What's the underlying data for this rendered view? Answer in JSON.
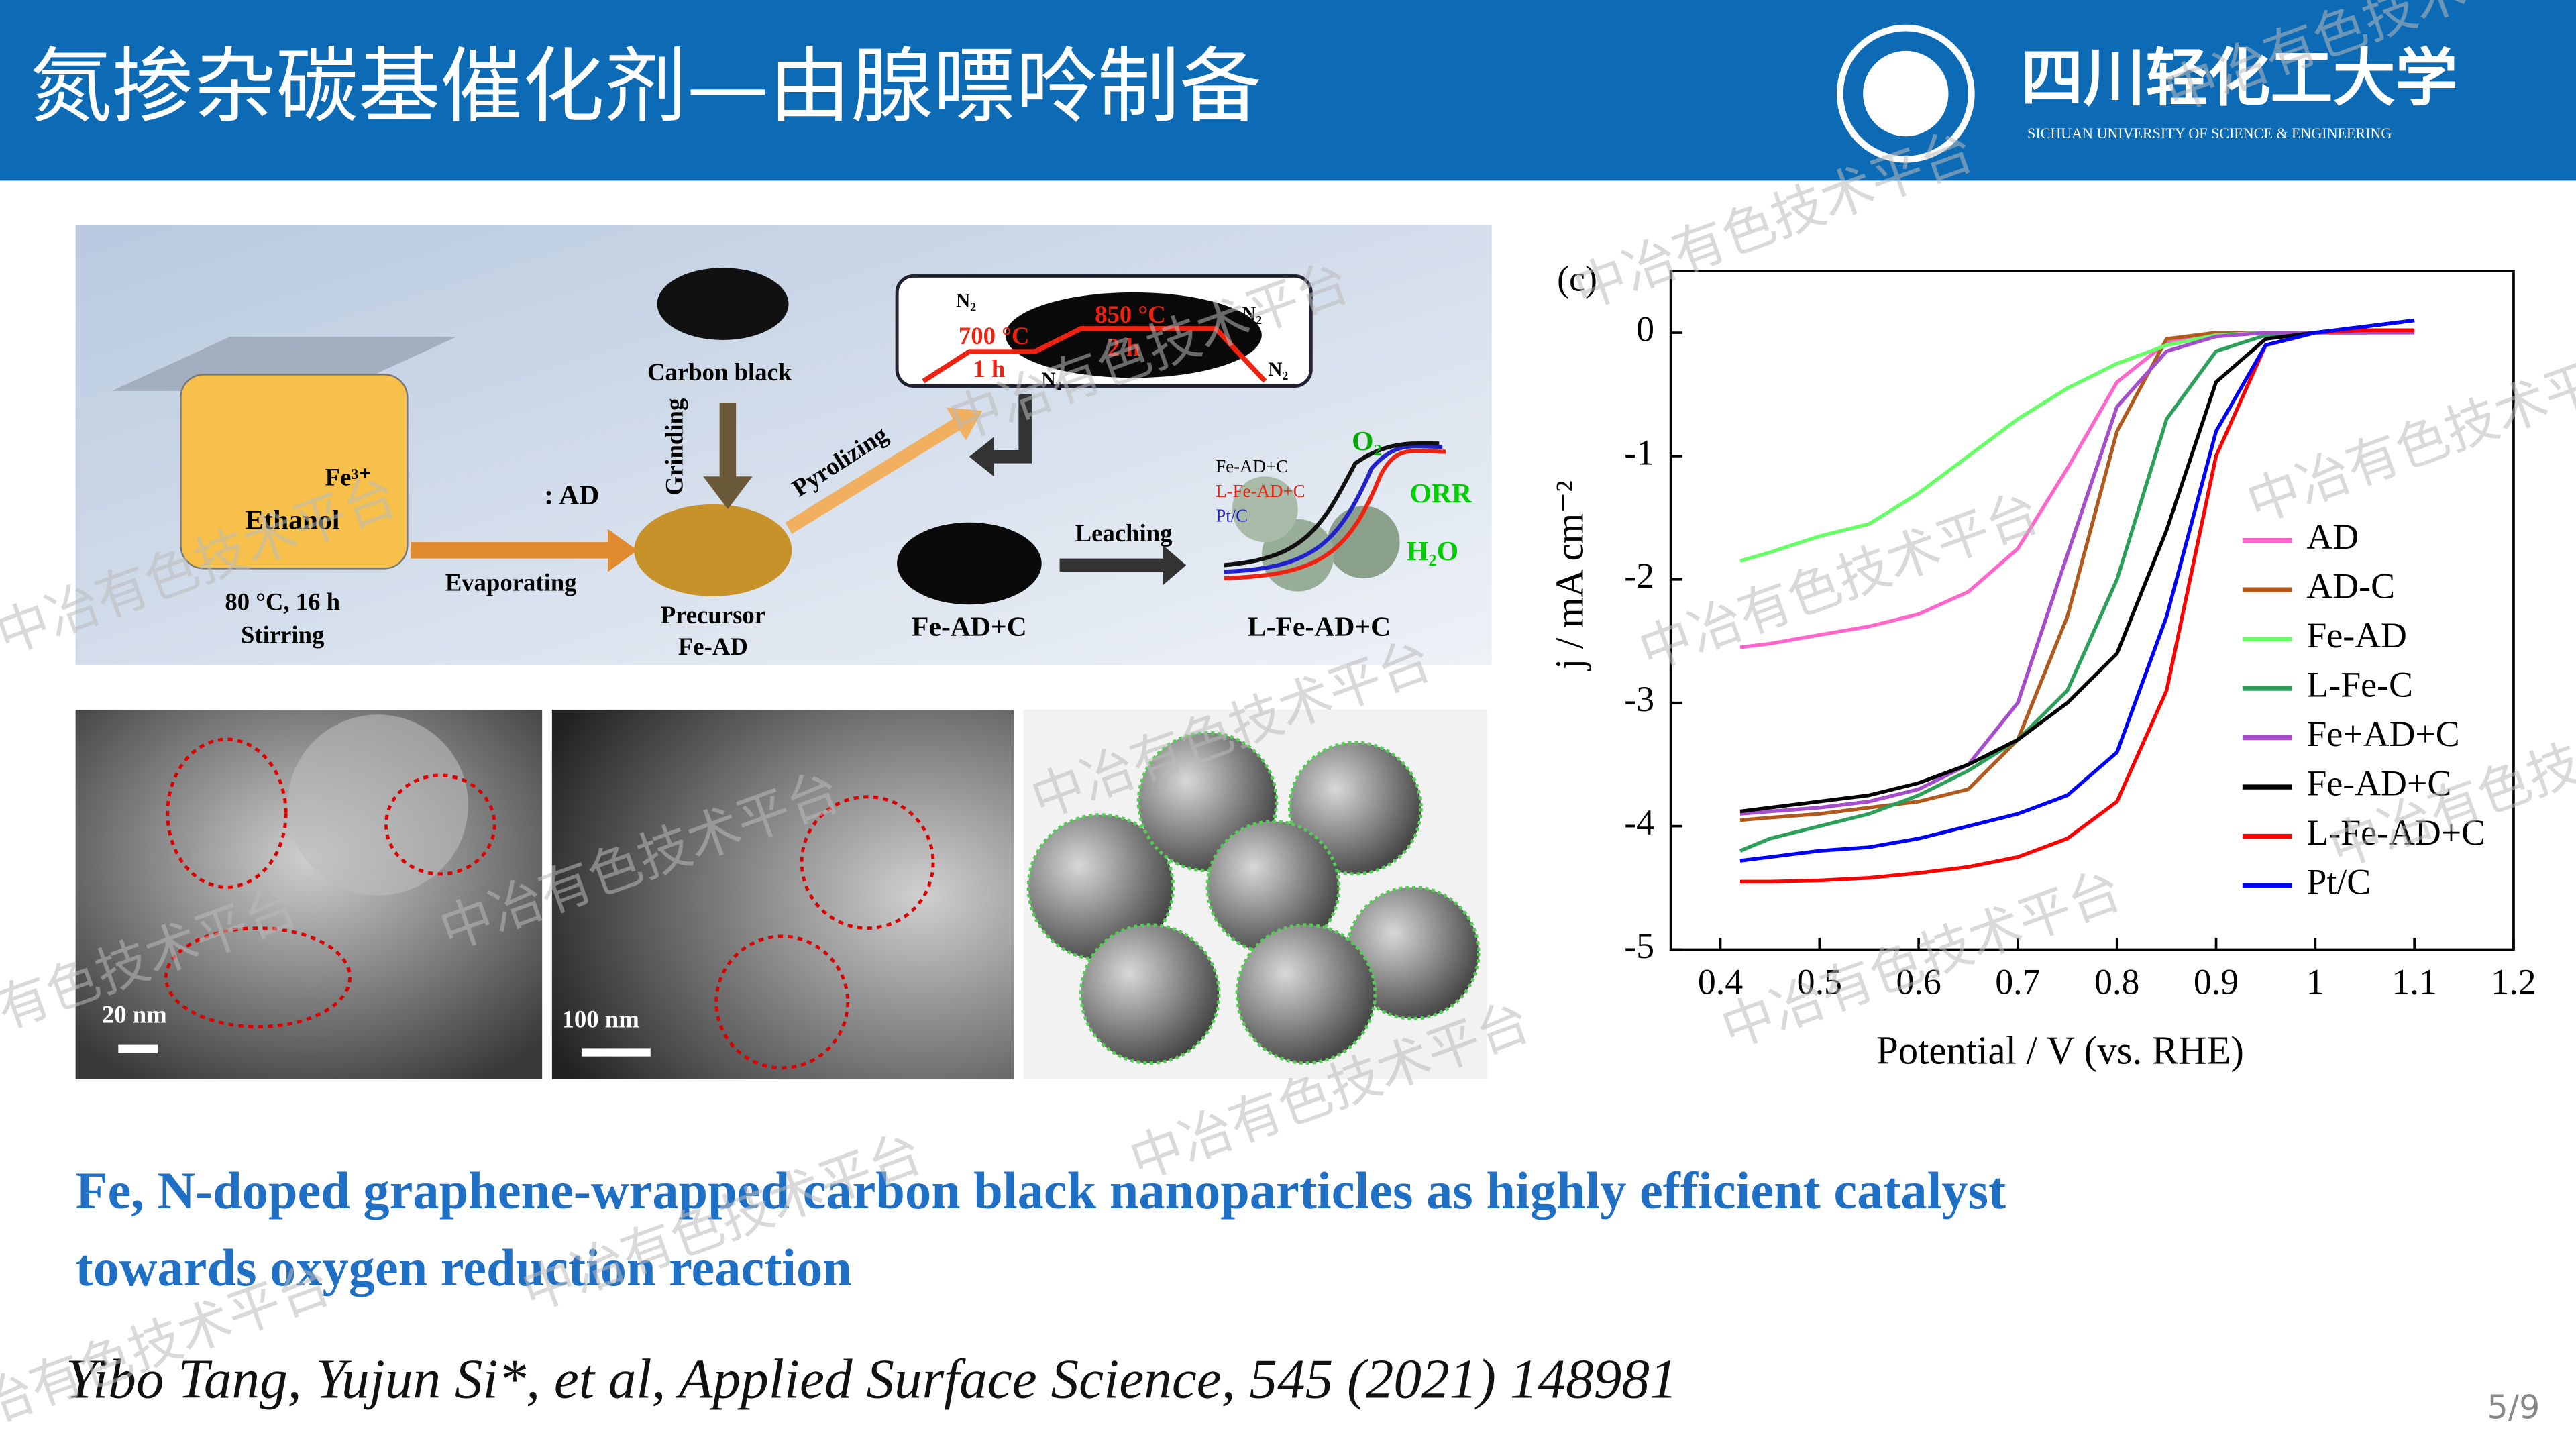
{
  "header": {
    "title": "氮掺杂碳基催化剂—由腺嘌呤制备",
    "university_cn": "四川轻化工大学",
    "university_en": "SICHUAN UNIVERSITY OF SCIENCE & ENGINEERING"
  },
  "scheme": {
    "ethanol": "Ethanol",
    "fe3": "Fe³⁺",
    "condition": "80 °C, 16 h",
    "stirring": "Stirring",
    "ad": ": AD",
    "evaporating": "Evaporating",
    "carbon_black": "Carbon black",
    "grinding": "Grinding",
    "precursor": "Precursor",
    "fe_ad": "Fe-AD",
    "pyrolizing": "Pyrolizing",
    "n2": "N₂",
    "t1": "700 °C",
    "h1": "1 h",
    "t2": "850 °C",
    "h2": "2 h",
    "product": "Fe-AD+C",
    "leaching": "Leaching",
    "final": "L-Fe-AD+C",
    "o2": "O₂",
    "orr": "ORR",
    "h2o": "H₂O",
    "mini_legend": [
      "Fe-AD+C",
      "L-Fe-AD+C",
      "Pt/C"
    ]
  },
  "micrographs": {
    "scale_bars": [
      "20 nm",
      "100 nm"
    ]
  },
  "chart_data": {
    "type": "line",
    "panel_label": "(c)",
    "x_label": "Potential / V (vs. RHE)",
    "y_label": "j / mA cm⁻²",
    "x": [
      0.42,
      0.45,
      0.5,
      0.55,
      0.6,
      0.65,
      0.7,
      0.75,
      0.8,
      0.85,
      0.9,
      0.95,
      1.0,
      1.05,
      1.1
    ],
    "series": [
      {
        "name": "AD",
        "color": "#ff66cc",
        "values": [
          -2.55,
          -2.52,
          -2.45,
          -2.38,
          -2.28,
          -2.1,
          -1.75,
          -1.1,
          -0.4,
          -0.08,
          -0.02,
          0,
          0,
          0,
          0
        ]
      },
      {
        "name": "AD-C",
        "color": "#b05a1e",
        "values": [
          -3.95,
          -3.93,
          -3.9,
          -3.85,
          -3.8,
          -3.7,
          -3.3,
          -2.3,
          -0.8,
          -0.05,
          0,
          0,
          0,
          0,
          0.02
        ]
      },
      {
        "name": "Fe-AD",
        "color": "#66ff66",
        "values": [
          -1.85,
          -1.78,
          -1.65,
          -1.55,
          -1.3,
          -1.0,
          -0.7,
          -0.45,
          -0.25,
          -0.1,
          -0.02,
          0,
          0,
          0,
          0.02
        ]
      },
      {
        "name": "L-Fe-C",
        "color": "#2ca05a",
        "values": [
          -4.2,
          -4.1,
          -4.0,
          -3.9,
          -3.75,
          -3.55,
          -3.3,
          -2.9,
          -2.0,
          -0.7,
          -0.15,
          -0.02,
          0,
          0.05,
          0.1
        ]
      },
      {
        "name": "Fe+AD+C",
        "color": "#a64dcc",
        "values": [
          -3.9,
          -3.88,
          -3.85,
          -3.8,
          -3.7,
          -3.5,
          -3.0,
          -1.8,
          -0.6,
          -0.15,
          -0.03,
          0,
          0,
          0,
          0
        ]
      },
      {
        "name": "Fe-AD+C",
        "color": "#000000",
        "values": [
          -3.88,
          -3.85,
          -3.8,
          -3.75,
          -3.65,
          -3.5,
          -3.3,
          -3.0,
          -2.6,
          -1.6,
          -0.4,
          -0.05,
          0,
          0.05,
          0.1
        ]
      },
      {
        "name": "L-Fe-AD+C",
        "color": "#ff0000",
        "values": [
          -4.45,
          -4.45,
          -4.44,
          -4.42,
          -4.38,
          -4.33,
          -4.25,
          -4.1,
          -3.8,
          -2.9,
          -1.0,
          -0.1,
          0,
          0.02,
          0.02
        ]
      },
      {
        "name": "Pt/C",
        "color": "#0000ff",
        "values": [
          -4.28,
          -4.25,
          -4.2,
          -4.17,
          -4.1,
          -4.0,
          -3.9,
          -3.75,
          -3.4,
          -2.3,
          -0.8,
          -0.1,
          0,
          0.05,
          0.1
        ]
      }
    ],
    "xlim": [
      0.35,
      1.2
    ],
    "ylim": [
      -5,
      0.5
    ],
    "xticks": [
      0.4,
      0.5,
      0.6,
      0.7,
      0.8,
      0.9,
      1.0,
      1.1,
      1.2
    ],
    "yticks": [
      0,
      -1,
      -2,
      -3,
      -4,
      -5
    ],
    "legend": "right"
  },
  "paper": {
    "title_lines": [
      "Fe, N-doped graphene-wrapped carbon black nanoparticles as highly efficient catalyst",
      "towards oxygen reduction reaction"
    ],
    "citation": "Yibo Tang, Yujun Si*, et al, Applied Surface Science, 545 (2021) 148981"
  },
  "page_number": "5/9",
  "watermark": "中冶有色技术平台"
}
